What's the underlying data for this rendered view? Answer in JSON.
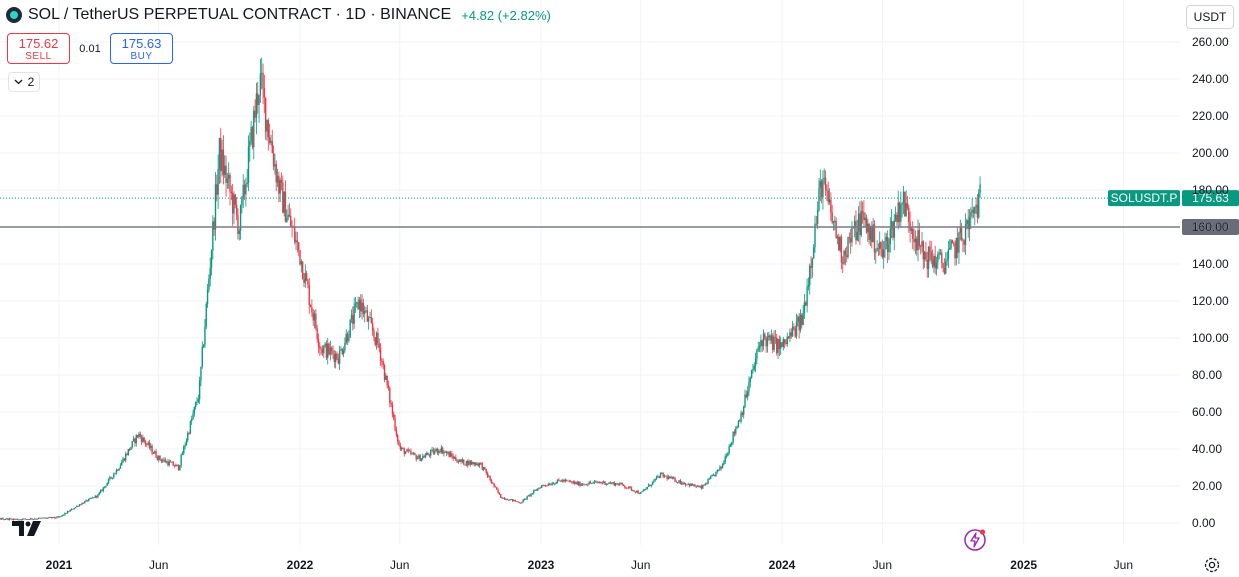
{
  "header": {
    "title": "SOL / TetherUS PERPETUAL CONTRACT · 1D · BINANCE",
    "change": "+4.82 (+2.82%)"
  },
  "trade": {
    "sell_price": "175.62",
    "sell_label": "SELL",
    "spread": "0.01",
    "buy_price": "175.63",
    "buy_label": "BUY"
  },
  "indicators_count": "2",
  "currency": "USDT",
  "colors": {
    "up": "#089981",
    "down": "#f23645",
    "grid": "#f0f3fa",
    "hline": "#787b86"
  },
  "chart_data": {
    "type": "candlestick",
    "symbol": "SOLUSDT.P",
    "last_price": 175.63,
    "last_label": "175.63",
    "horizontal_line": 160.0,
    "horizontal_line_label": "160.00",
    "ylim": [
      0,
      260
    ],
    "y_ticks": [
      "0.00",
      "20.00",
      "40.00",
      "60.00",
      "80.00",
      "100.00",
      "120.00",
      "140.00",
      "160.00",
      "180.00",
      "200.00",
      "220.00",
      "240.00",
      "260.00"
    ],
    "x_ticks": [
      "2021",
      "Jun",
      "2022",
      "Jun",
      "2023",
      "Jun",
      "2024",
      "Jun",
      "2025",
      "Jun"
    ],
    "price_path": [
      {
        "t": "2020-08",
        "p": 3
      },
      {
        "t": "2020-11",
        "p": 2
      },
      {
        "t": "2021-01",
        "p": 3
      },
      {
        "t": "2021-02",
        "p": 10
      },
      {
        "t": "2021-03",
        "p": 15
      },
      {
        "t": "2021-04",
        "p": 30
      },
      {
        "t": "2021-05",
        "p": 48
      },
      {
        "t": "2021-06",
        "p": 35
      },
      {
        "t": "2021-07",
        "p": 30
      },
      {
        "t": "2021-08",
        "p": 70
      },
      {
        "t": "2021-09",
        "p": 200
      },
      {
        "t": "2021-10",
        "p": 160
      },
      {
        "t": "2021-11",
        "p": 240
      },
      {
        "t": "2021-12",
        "p": 180
      },
      {
        "t": "2022-01",
        "p": 145
      },
      {
        "t": "2022-02",
        "p": 95
      },
      {
        "t": "2022-03",
        "p": 90
      },
      {
        "t": "2022-04",
        "p": 120
      },
      {
        "t": "2022-05",
        "p": 95
      },
      {
        "t": "2022-06",
        "p": 40
      },
      {
        "t": "2022-07",
        "p": 35
      },
      {
        "t": "2022-08",
        "p": 40
      },
      {
        "t": "2022-09",
        "p": 33
      },
      {
        "t": "2022-10",
        "p": 32
      },
      {
        "t": "2022-11",
        "p": 14
      },
      {
        "t": "2022-12",
        "p": 11
      },
      {
        "t": "2023-01",
        "p": 20
      },
      {
        "t": "2023-02",
        "p": 23
      },
      {
        "t": "2023-03",
        "p": 21
      },
      {
        "t": "2023-04",
        "p": 22
      },
      {
        "t": "2023-05",
        "p": 21
      },
      {
        "t": "2023-06",
        "p": 16
      },
      {
        "t": "2023-07",
        "p": 26
      },
      {
        "t": "2023-08",
        "p": 22
      },
      {
        "t": "2023-09",
        "p": 19
      },
      {
        "t": "2023-10",
        "p": 30
      },
      {
        "t": "2023-11",
        "p": 60
      },
      {
        "t": "2023-12",
        "p": 100
      },
      {
        "t": "2024-01",
        "p": 95
      },
      {
        "t": "2024-02",
        "p": 110
      },
      {
        "t": "2024-03",
        "p": 185
      },
      {
        "t": "2024-04",
        "p": 145
      },
      {
        "t": "2024-05",
        "p": 165
      },
      {
        "t": "2024-06",
        "p": 145
      },
      {
        "t": "2024-07",
        "p": 175
      },
      {
        "t": "2024-08",
        "p": 145
      },
      {
        "t": "2024-09",
        "p": 140
      },
      {
        "t": "2024-10",
        "p": 155
      },
      {
        "t": "2024-10-28",
        "p": 176
      }
    ]
  }
}
